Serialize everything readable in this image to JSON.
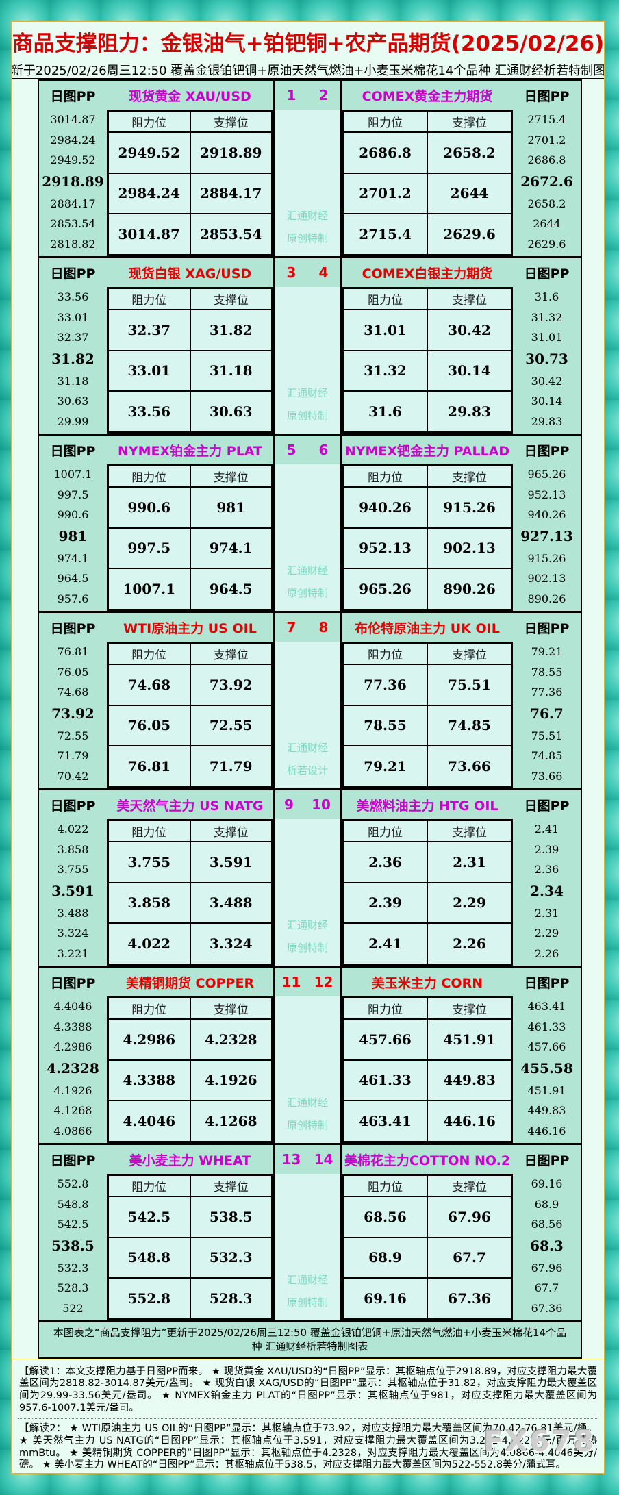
{
  "title": "商品支撑阻力：金银油气+铂钯铜+农产品期货(2025/02/26)",
  "subtitle": "更新于2025/02/26周三12:50  覆盖金银铂钯铜+原油天然气燃油+小麦玉米棉花14个品种  汇通财经析若特制图表",
  "labels": {
    "pp": "日图PP",
    "resistance": "阻力位",
    "support": "支撑位"
  },
  "colors": {
    "accent_magenta": "#cc00cc",
    "accent_red": "#e60000",
    "title_red": "#d40000",
    "block_green": "#b2e5d4",
    "cell_mint": "#d8f5ef",
    "gold_border": "#d9b637"
  },
  "blocks": [
    {
      "accent": "magenta",
      "num_left": "1",
      "num_right": "2",
      "watermark": [
        "汇通财经",
        "原创特制"
      ],
      "left": {
        "title": "现货黄金 XAU/USD",
        "pp": [
          "3014.87",
          "2984.24",
          "2949.52",
          "2918.89",
          "2884.17",
          "2853.54",
          "2818.82"
        ],
        "rows": [
          [
            "2949.52",
            "2918.89"
          ],
          [
            "2984.24",
            "2884.17"
          ],
          [
            "3014.87",
            "2853.54"
          ]
        ]
      },
      "right": {
        "title": "COMEX黄金主力期货",
        "pp": [
          "2715.4",
          "2701.2",
          "2686.8",
          "2672.6",
          "2658.2",
          "2644",
          "2629.6"
        ],
        "rows": [
          [
            "2686.8",
            "2658.2"
          ],
          [
            "2701.2",
            "2644"
          ],
          [
            "2715.4",
            "2629.6"
          ]
        ]
      }
    },
    {
      "accent": "red",
      "num_left": "3",
      "num_right": "4",
      "watermark": [
        "汇通财经",
        "原创特制"
      ],
      "left": {
        "title": "现货白银 XAG/USD",
        "pp": [
          "33.56",
          "33.01",
          "32.37",
          "31.82",
          "31.18",
          "30.63",
          "29.99"
        ],
        "rows": [
          [
            "32.37",
            "31.82"
          ],
          [
            "33.01",
            "31.18"
          ],
          [
            "33.56",
            "30.63"
          ]
        ]
      },
      "right": {
        "title": "COMEX白银主力期货",
        "pp": [
          "31.6",
          "31.32",
          "31.01",
          "30.73",
          "30.42",
          "30.14",
          "29.83"
        ],
        "rows": [
          [
            "31.01",
            "30.42"
          ],
          [
            "31.32",
            "30.14"
          ],
          [
            "31.6",
            "29.83"
          ]
        ]
      }
    },
    {
      "accent": "magenta",
      "num_left": "5",
      "num_right": "6",
      "watermark": [
        "汇通财经",
        "原创特制"
      ],
      "left": {
        "title": "NYMEX铂金主力 PLAT",
        "pp": [
          "1007.1",
          "997.5",
          "990.6",
          "981",
          "974.1",
          "964.5",
          "957.6"
        ],
        "rows": [
          [
            "990.6",
            "981"
          ],
          [
            "997.5",
            "974.1"
          ],
          [
            "1007.1",
            "964.5"
          ]
        ]
      },
      "right": {
        "title": "NYMEX钯金主力 PALLAD",
        "pp": [
          "965.26",
          "952.13",
          "940.26",
          "927.13",
          "915.26",
          "902.13",
          "890.26"
        ],
        "rows": [
          [
            "940.26",
            "915.26"
          ],
          [
            "952.13",
            "902.13"
          ],
          [
            "965.26",
            "890.26"
          ]
        ]
      }
    },
    {
      "accent": "red",
      "num_left": "7",
      "num_right": "8",
      "watermark": [
        "汇通财经",
        "析若设计"
      ],
      "left": {
        "title": "WTI原油主力 US OIL",
        "pp": [
          "76.81",
          "76.05",
          "74.68",
          "73.92",
          "72.55",
          "71.79",
          "70.42"
        ],
        "rows": [
          [
            "74.68",
            "73.92"
          ],
          [
            "76.05",
            "72.55"
          ],
          [
            "76.81",
            "71.79"
          ]
        ]
      },
      "right": {
        "title": "布伦特原油主力 UK OIL",
        "pp": [
          "79.21",
          "78.55",
          "77.36",
          "76.7",
          "75.51",
          "74.85",
          "73.66"
        ],
        "rows": [
          [
            "77.36",
            "75.51"
          ],
          [
            "78.55",
            "74.85"
          ],
          [
            "79.21",
            "73.66"
          ]
        ]
      }
    },
    {
      "accent": "magenta",
      "num_left": "9",
      "num_right": "10",
      "watermark": [
        "汇通财经",
        "原创特制"
      ],
      "left": {
        "title": "美天然气主力 US NATG",
        "pp": [
          "4.022",
          "3.858",
          "3.755",
          "3.591",
          "3.488",
          "3.324",
          "3.221"
        ],
        "rows": [
          [
            "3.755",
            "3.591"
          ],
          [
            "3.858",
            "3.488"
          ],
          [
            "4.022",
            "3.324"
          ]
        ]
      },
      "right": {
        "title": "美燃料油主力 HTG OIL",
        "pp": [
          "2.41",
          "2.39",
          "2.36",
          "2.34",
          "2.31",
          "2.29",
          "2.26"
        ],
        "rows": [
          [
            "2.36",
            "2.31"
          ],
          [
            "2.39",
            "2.29"
          ],
          [
            "2.41",
            "2.26"
          ]
        ]
      }
    },
    {
      "accent": "red",
      "num_left": "11",
      "num_right": "12",
      "watermark": [
        "汇通财经",
        "原创特制"
      ],
      "left": {
        "title": "美精铜期货 COPPER",
        "pp": [
          "4.4046",
          "4.3388",
          "4.2986",
          "4.2328",
          "4.1926",
          "4.1268",
          "4.0866"
        ],
        "rows": [
          [
            "4.2986",
            "4.2328"
          ],
          [
            "4.3388",
            "4.1926"
          ],
          [
            "4.4046",
            "4.1268"
          ]
        ]
      },
      "right": {
        "title": "美玉米主力 CORN",
        "pp": [
          "463.41",
          "461.33",
          "457.66",
          "455.58",
          "451.91",
          "449.83",
          "446.16"
        ],
        "rows": [
          [
            "457.66",
            "451.91"
          ],
          [
            "461.33",
            "449.83"
          ],
          [
            "463.41",
            "446.16"
          ]
        ]
      }
    },
    {
      "accent": "magenta",
      "num_left": "13",
      "num_right": "14",
      "watermark": [
        "汇通财经",
        "原创特制"
      ],
      "left": {
        "title": "美小麦主力 WHEAT",
        "pp": [
          "552.8",
          "548.8",
          "542.5",
          "538.5",
          "532.3",
          "528.3",
          "522"
        ],
        "rows": [
          [
            "542.5",
            "538.5"
          ],
          [
            "548.8",
            "532.3"
          ],
          [
            "552.8",
            "528.3"
          ]
        ]
      },
      "right": {
        "title": "美棉花主力COTTON NO.2",
        "pp": [
          "69.16",
          "68.9",
          "68.56",
          "68.3",
          "67.96",
          "67.7",
          "67.36"
        ],
        "rows": [
          [
            "68.56",
            "67.96"
          ],
          [
            "68.9",
            "67.7"
          ],
          [
            "69.16",
            "67.36"
          ]
        ]
      }
    }
  ],
  "footer_bar": "本图表之“商品支撑阻力”更新于2025/02/26周三12:50  覆盖金银铂钯铜+原油天然气燃油+小麦玉米棉花14个品种  汇通财经析若特制图表",
  "notes": [
    "【解读1：本文支撑阻力基于日图PP而来。 ★ 现货黄金 XAU/USD的“日图PP”显示：其枢轴点位于2918.89，对应支撑阻力最大覆盖区间为2818.82-3014.87美元/盎司。 ★ 现货白银 XAG/USD的“日图PP”显示：其枢轴点位于31.82，对应支撑阻力最大覆盖区间为29.99-33.56美元/盎司。 ★ NYMEX铂金主力 PLAT的“日图PP”显示：其枢轴点位于981，对应支撑阻力最大覆盖区间为957.6-1007.1美元/盎司。",
    "【解读2： ★ WTI原油主力 US OIL的“日图PP”显示：其枢轴点位于73.92，对应支撑阻力最大覆盖区间为70.42-76.81美元/桶。 ★ 美天然气主力 US NATG的“日图PP”显示：其枢轴点位于3.591，对应支撑阻力最大覆盖区间为3.221-4.022美元/百万英热mmBtu。 ★ 美精铜期货 COPPER的“日图PP”显示：其枢轴点位于4.2328，对应支撑阻力最大覆盖区间为4.0866-4.4046美分/磅。 ★ 美小麦主力 WHEAT的“日图PP”显示：其枢轴点位于538.5，对应支撑阻力最大覆盖区间为522-552.8美分/蒲式耳。"
  ],
  "fx_watermark": "FX678"
}
